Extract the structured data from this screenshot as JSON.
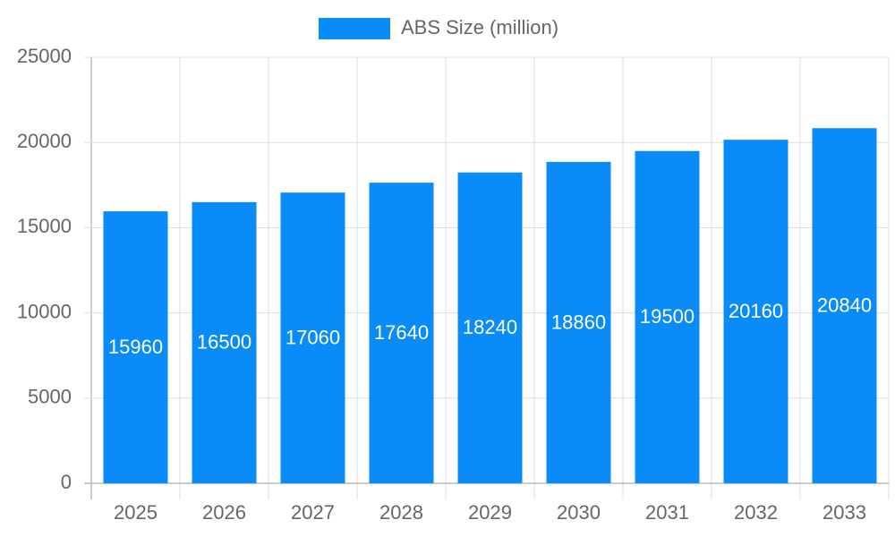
{
  "chart_data": {
    "type": "bar",
    "categories": [
      "2025",
      "2026",
      "2027",
      "2028",
      "2029",
      "2030",
      "2031",
      "2032",
      "2033"
    ],
    "series": [
      {
        "name": "ABS Size (million)",
        "color": "#0a8bfa",
        "values": [
          15960,
          16500,
          17060,
          17640,
          18240,
          18860,
          19500,
          20160,
          20840
        ]
      }
    ],
    "ylim": [
      0,
      25000
    ],
    "yticks": [
      0,
      5000,
      10000,
      15000,
      20000,
      25000
    ],
    "grid": true,
    "legend": "top"
  }
}
